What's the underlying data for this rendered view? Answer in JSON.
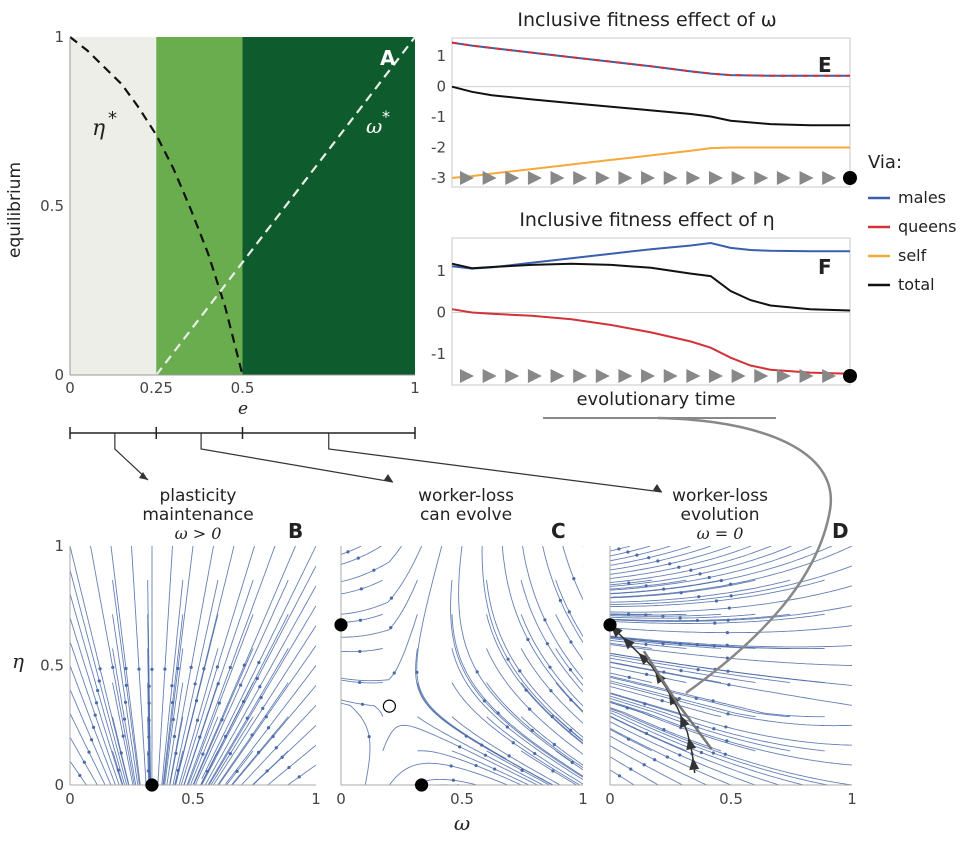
{
  "chart_data": [
    {
      "panel": "A",
      "type": "area",
      "ylabel": "equilibrium",
      "xlabel": "e",
      "xlim": [
        0,
        1
      ],
      "ylim": [
        0,
        1
      ],
      "xticks": [
        "0",
        "0.25",
        "0.5",
        "1"
      ],
      "yticks": [
        "0",
        "0.5",
        "1"
      ],
      "regions": [
        {
          "from": 0,
          "to": 0.25,
          "color": "#eeeee8"
        },
        {
          "from": 0.25,
          "to": 0.5,
          "color": "#6aad4e"
        },
        {
          "from": 0.5,
          "to": 1,
          "color": "#0e5c2e"
        }
      ],
      "series": [
        {
          "name": "η*",
          "color": "#111111",
          "x": [
            0,
            0.05,
            0.1,
            0.15,
            0.2,
            0.25,
            0.3,
            0.35,
            0.4,
            0.45,
            0.5
          ],
          "y": [
            1,
            0.96,
            0.91,
            0.86,
            0.79,
            0.71,
            0.61,
            0.49,
            0.36,
            0.2,
            0.0
          ]
        },
        {
          "name": "ω*",
          "color": "#e8ede8",
          "x": [
            0.25,
            1
          ],
          "y": [
            0,
            1
          ]
        }
      ]
    },
    {
      "panel": "E",
      "type": "line",
      "title": "Inclusive fitness effect of ω",
      "ylim": [
        -3.3,
        1.6
      ],
      "yticks": [
        "1",
        "0",
        "-1",
        "-2",
        "-3"
      ],
      "ytick_values": [
        1,
        0,
        -1,
        -2,
        -3
      ],
      "x": [
        0,
        0.05,
        0.1,
        0.2,
        0.3,
        0.4,
        0.5,
        0.6,
        0.65,
        0.7,
        0.8,
        0.9,
        1.0
      ],
      "series": [
        {
          "name": "males",
          "color": "#3a5fae",
          "values": [
            1.45,
            1.35,
            1.27,
            1.12,
            0.97,
            0.82,
            0.67,
            0.5,
            0.43,
            0.38,
            0.36,
            0.36,
            0.36
          ]
        },
        {
          "name": "queens",
          "color": "#d23238",
          "values": [
            1.45,
            1.35,
            1.27,
            1.12,
            0.97,
            0.82,
            0.67,
            0.5,
            0.43,
            0.38,
            0.36,
            0.36,
            0.36
          ]
        },
        {
          "name": "self",
          "color": "#f5a93a",
          "values": [
            -3.0,
            -2.94,
            -2.86,
            -2.71,
            -2.56,
            -2.41,
            -2.26,
            -2.11,
            -2.02,
            -2.0,
            -2.0,
            -2.0,
            -2.0
          ]
        },
        {
          "name": "total",
          "color": "#111111",
          "values": [
            0.0,
            -0.17,
            -0.28,
            -0.42,
            -0.54,
            -0.66,
            -0.78,
            -0.9,
            -0.98,
            -1.12,
            -1.23,
            -1.27,
            -1.27
          ]
        }
      ],
      "arrow_count": 17
    },
    {
      "panel": "F",
      "type": "line",
      "title": "Inclusive fitness effect of η",
      "xlabel": "evolutionary time",
      "ylim": [
        -1.75,
        1.8
      ],
      "yticks": [
        "1",
        "0",
        "-1"
      ],
      "ytick_values": [
        1,
        0,
        -1
      ],
      "x": [
        0,
        0.05,
        0.1,
        0.2,
        0.3,
        0.4,
        0.5,
        0.6,
        0.65,
        0.7,
        0.75,
        0.8,
        0.9,
        1.0
      ],
      "series": [
        {
          "name": "males",
          "color": "#3a5fae",
          "values": [
            1.12,
            1.06,
            1.09,
            1.2,
            1.31,
            1.42,
            1.53,
            1.62,
            1.68,
            1.56,
            1.51,
            1.49,
            1.48,
            1.48
          ]
        },
        {
          "name": "queens",
          "color": "#d23238",
          "values": [
            0.08,
            0.0,
            -0.03,
            -0.08,
            -0.16,
            -0.3,
            -0.48,
            -0.7,
            -0.85,
            -1.09,
            -1.28,
            -1.38,
            -1.45,
            -1.48
          ]
        },
        {
          "name": "total",
          "color": "#111111",
          "values": [
            1.18,
            1.07,
            1.1,
            1.15,
            1.18,
            1.15,
            1.08,
            0.94,
            0.88,
            0.52,
            0.3,
            0.17,
            0.08,
            0.05
          ]
        }
      ],
      "arrow_count": 17
    },
    {
      "panel": "B",
      "type": "scatter",
      "xlabel": "",
      "xlim": [
        0,
        1
      ],
      "ylim": [
        0,
        1
      ],
      "xticks": [
        "0",
        "0.5",
        "1"
      ],
      "yticks": [
        "0",
        "0.5",
        "1"
      ],
      "equilibria": [
        {
          "x": 0.333,
          "y": 0,
          "kind": "stable"
        }
      ]
    },
    {
      "panel": "C",
      "type": "scatter",
      "xlim": [
        0,
        1
      ],
      "ylim": [
        0,
        1
      ],
      "xticks": [
        "0",
        "0.5",
        "1"
      ],
      "equilibria": [
        {
          "x": 0,
          "y": 0.67,
          "kind": "stable"
        },
        {
          "x": 0.2,
          "y": 0.33,
          "kind": "unstable"
        },
        {
          "x": 0.333,
          "y": 0,
          "kind": "stable"
        }
      ]
    },
    {
      "panel": "D",
      "type": "scatter",
      "xlim": [
        0,
        1
      ],
      "ylim": [
        0,
        1
      ],
      "xticks": [
        "0",
        "0.5",
        "1"
      ],
      "equilibria": [
        {
          "x": 0,
          "y": 0.67,
          "kind": "stable"
        }
      ],
      "trajectory": {
        "x": [
          0.35,
          0.34,
          0.32,
          0.28,
          0.23,
          0.17,
          0.1,
          0.04,
          0.0
        ],
        "y": [
          0.05,
          0.13,
          0.22,
          0.32,
          0.41,
          0.5,
          0.57,
          0.63,
          0.67
        ]
      },
      "trajectory_arrows": 9
    }
  ],
  "labels": {
    "panelA": "A",
    "panelB": "B",
    "panelC": "C",
    "panelD": "D",
    "panelE": "E",
    "panelF": "F",
    "eta_star": "η",
    "omega_star": "ω",
    "star": "*",
    "eq_ylabel": "equilibrium",
    "e_xlabel": "e",
    "titleE": "Inclusive fitness effect of ω",
    "titleF": "Inclusive fitness effect of η",
    "time_xlabel": "evolutionary time",
    "legend_title": "Via:",
    "legend": [
      "males",
      "queens",
      "self",
      "total"
    ],
    "regimeB_1": "plasticity",
    "regimeB_2": "maintenance",
    "regimeB_3": "ω > 0",
    "regimeC_1": "worker-loss",
    "regimeC_2": "can evolve",
    "regimeD_1": "worker-loss",
    "regimeD_2": "evolution",
    "regimeD_3": "ω = 0",
    "eta_axis": "η",
    "omega_axis": "ω"
  },
  "colors": {
    "males": "#3a5fae",
    "queens": "#d23238",
    "self": "#f5a93a",
    "total": "#111111",
    "stream": "#4a6aa8",
    "trajectory": "#777777"
  }
}
